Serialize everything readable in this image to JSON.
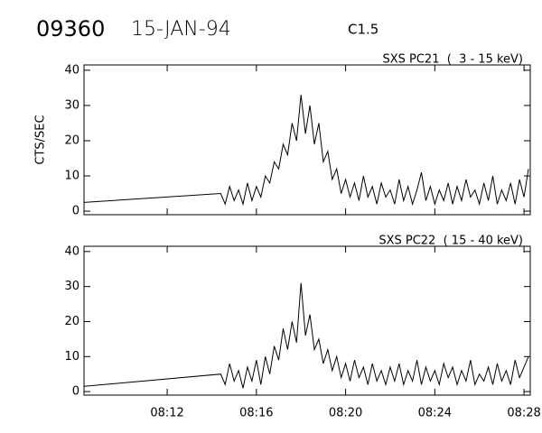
{
  "header": {
    "event": "09360",
    "date": "15-JAN-94",
    "class": "C1.5"
  },
  "chart_data": [
    {
      "type": "line",
      "title": "SXS PC21  (  3 - 15 keV)",
      "y_label": "CTS/SEC",
      "color": "#000000",
      "xlim": [
        8.27,
        28.28
      ],
      "xticks": [
        12,
        16,
        20,
        24,
        28
      ],
      "ylim": [
        -1,
        41.5
      ],
      "yticks": [
        0,
        10,
        20,
        30,
        40
      ],
      "x": [
        8.27,
        14.4,
        14.6,
        14.8,
        15.0,
        15.2,
        15.4,
        15.6,
        15.8,
        16.0,
        16.2,
        16.4,
        16.6,
        16.8,
        17.0,
        17.2,
        17.4,
        17.6,
        17.8,
        18.0,
        18.2,
        18.4,
        18.6,
        18.8,
        19.0,
        19.2,
        19.4,
        19.6,
        19.8,
        20.0,
        20.2,
        20.4,
        20.6,
        20.8,
        21.0,
        21.2,
        21.4,
        21.6,
        21.8,
        22.0,
        22.2,
        22.4,
        22.6,
        22.8,
        23.0,
        23.2,
        23.4,
        23.6,
        23.8,
        24.0,
        24.2,
        24.4,
        24.6,
        24.8,
        25.0,
        25.2,
        25.4,
        25.6,
        25.8,
        26.0,
        26.2,
        26.4,
        26.6,
        26.8,
        27.0,
        27.2,
        27.4,
        27.6,
        27.8,
        28.0,
        28.2
      ],
      "values": [
        2.5,
        5,
        2,
        7,
        3,
        6,
        2,
        8,
        3,
        7,
        4,
        10,
        8,
        14,
        12,
        19,
        16,
        25,
        20,
        33,
        22,
        30,
        19,
        25,
        14,
        17,
        9,
        12,
        5,
        9,
        4,
        8,
        3,
        10,
        4,
        7,
        2,
        8,
        4,
        6,
        2,
        9,
        3,
        7,
        2,
        6,
        11,
        3,
        7,
        2,
        6,
        3,
        8,
        2,
        7,
        3,
        9,
        4,
        6,
        2,
        8,
        3,
        10,
        2,
        6,
        3,
        8,
        2,
        9,
        4,
        12
      ]
    },
    {
      "type": "line",
      "title": "SXS PC22  ( 15 - 40 keV)",
      "color": "#000000",
      "xlim": [
        8.27,
        28.28
      ],
      "xticks": [
        {
          "value": 12,
          "label": "08:12"
        },
        {
          "value": 16,
          "label": "08:16"
        },
        {
          "value": 20,
          "label": "08:20"
        },
        {
          "value": 24,
          "label": "08:24"
        },
        {
          "value": 28,
          "label": "08:28"
        }
      ],
      "ylim": [
        -1,
        41.5
      ],
      "yticks": [
        0,
        10,
        20,
        30,
        40
      ],
      "x": [
        8.27,
        14.4,
        14.6,
        14.8,
        15.0,
        15.2,
        15.4,
        15.6,
        15.8,
        16.0,
        16.2,
        16.4,
        16.6,
        16.8,
        17.0,
        17.2,
        17.4,
        17.6,
        17.8,
        18.0,
        18.2,
        18.4,
        18.6,
        18.8,
        19.0,
        19.2,
        19.4,
        19.6,
        19.8,
        20.0,
        20.2,
        20.4,
        20.6,
        20.8,
        21.0,
        21.2,
        21.4,
        21.6,
        21.8,
        22.0,
        22.2,
        22.4,
        22.6,
        22.8,
        23.0,
        23.2,
        23.4,
        23.6,
        23.8,
        24.0,
        24.2,
        24.4,
        24.6,
        24.8,
        25.0,
        25.2,
        25.4,
        25.6,
        25.8,
        26.0,
        26.2,
        26.4,
        26.6,
        26.8,
        27.0,
        27.2,
        27.4,
        27.6,
        27.8,
        28.0,
        28.2
      ],
      "values": [
        1.5,
        5,
        2,
        8,
        3,
        6,
        1,
        7,
        3,
        9,
        2,
        10,
        5,
        13,
        9,
        18,
        12,
        20,
        14,
        31,
        16,
        22,
        12,
        15,
        8,
        12,
        6,
        10,
        4,
        8,
        3,
        9,
        4,
        7,
        2,
        8,
        3,
        6,
        2,
        7,
        3,
        8,
        2,
        6,
        3,
        9,
        2,
        7,
        3,
        6,
        2,
        8,
        4,
        7,
        2,
        6,
        3,
        9,
        2,
        5,
        3,
        7,
        2,
        8,
        3,
        6,
        2,
        9,
        4,
        7,
        10
      ]
    }
  ]
}
